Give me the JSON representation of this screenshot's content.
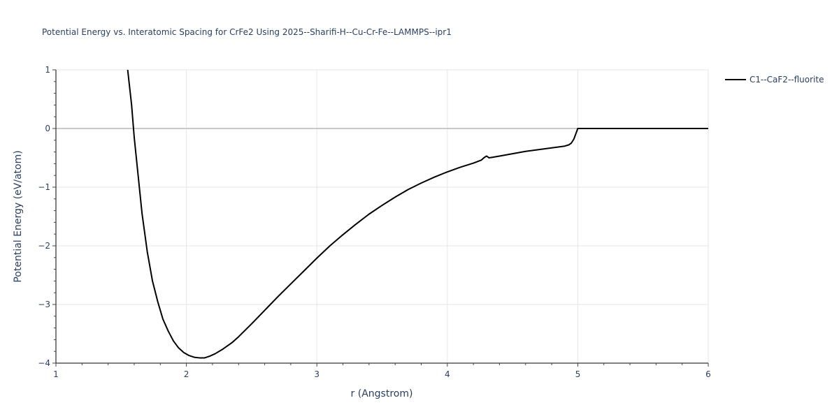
{
  "chart_data": {
    "type": "line",
    "title": "Potential Energy vs. Interatomic Spacing for CrFe2 Using 2025--Sharifi-H--Cu-Cr-Fe--LAMMPS--ipr1",
    "xlabel": "r (Angstrom)",
    "ylabel": "Potential Energy (eV/atom)",
    "xlim": [
      1,
      6
    ],
    "ylim": [
      -4,
      1
    ],
    "x_ticks": [
      1,
      2,
      3,
      4,
      5,
      6
    ],
    "x_tick_labels": [
      "1",
      "2",
      "3",
      "4",
      "5",
      "6"
    ],
    "y_ticks": [
      -4,
      -3,
      -2,
      -1,
      0,
      1
    ],
    "y_tick_labels": [
      "−4",
      "−3",
      "−2",
      "−1",
      "0",
      "1"
    ],
    "grid": true,
    "legend_position": "top-right",
    "series": [
      {
        "name": "C1--CaF2--fluorite",
        "color": "#000000",
        "x": [
          1.55,
          1.58,
          1.6,
          1.63,
          1.66,
          1.7,
          1.74,
          1.78,
          1.82,
          1.86,
          1.9,
          1.94,
          1.98,
          2.02,
          2.06,
          2.1,
          2.14,
          2.18,
          2.22,
          2.28,
          2.35,
          2.4,
          2.5,
          2.6,
          2.7,
          2.8,
          2.9,
          3.0,
          3.1,
          3.2,
          3.3,
          3.4,
          3.5,
          3.6,
          3.7,
          3.8,
          3.9,
          4.0,
          4.1,
          4.2,
          4.26,
          4.28,
          4.3,
          4.32,
          4.35,
          4.4,
          4.5,
          4.6,
          4.7,
          4.8,
          4.9,
          4.93,
          4.95,
          4.97,
          5.0,
          5.1,
          5.5,
          6.0
        ],
        "y": [
          1.0,
          0.4,
          -0.15,
          -0.8,
          -1.45,
          -2.1,
          -2.6,
          -2.95,
          -3.25,
          -3.45,
          -3.62,
          -3.74,
          -3.82,
          -3.87,
          -3.9,
          -3.91,
          -3.91,
          -3.88,
          -3.84,
          -3.76,
          -3.65,
          -3.55,
          -3.33,
          -3.1,
          -2.87,
          -2.65,
          -2.43,
          -2.21,
          -2.0,
          -1.81,
          -1.63,
          -1.46,
          -1.31,
          -1.17,
          -1.04,
          -0.93,
          -0.83,
          -0.74,
          -0.66,
          -0.59,
          -0.54,
          -0.5,
          -0.47,
          -0.5,
          -0.49,
          -0.47,
          -0.43,
          -0.39,
          -0.36,
          -0.33,
          -0.3,
          -0.28,
          -0.25,
          -0.18,
          0.0,
          0.0,
          0.0,
          0.0
        ]
      }
    ]
  }
}
